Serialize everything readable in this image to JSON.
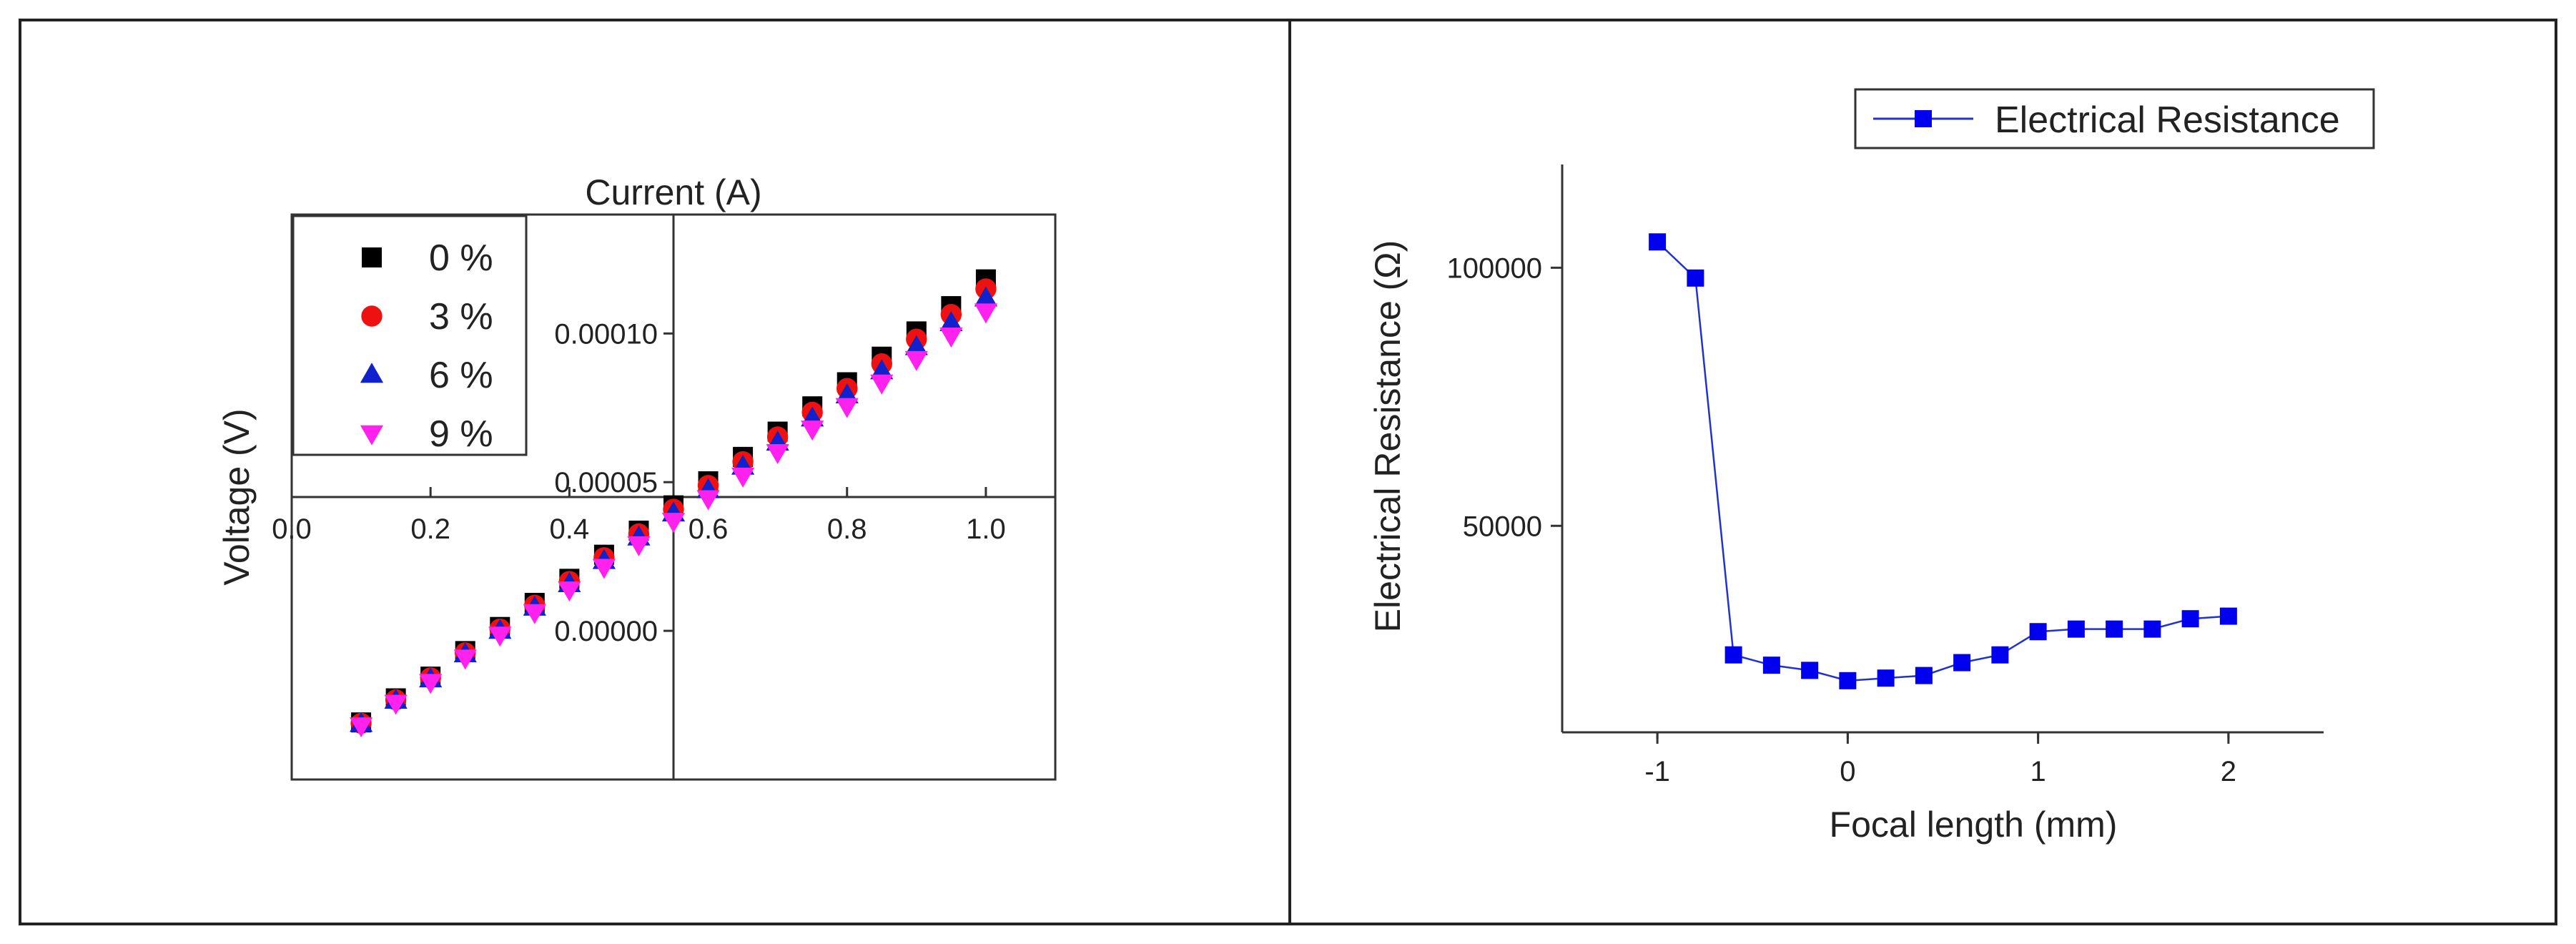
{
  "colors": {
    "frame": "#222222",
    "axis": "#333333",
    "s0": "#000000",
    "s3": "#ee1111",
    "s6": "#1122cc",
    "s9": "#ff22ee",
    "resistance": "#0000ee",
    "resistance_line": "#2233cc"
  },
  "chart_data": [
    {
      "type": "scatter",
      "title": "",
      "xlabel": "Current (A)",
      "ylabel": "Voltage (V)",
      "xlim": [
        0.0,
        1.1
      ],
      "ylim": [
        -5e-05,
        0.00014
      ],
      "x_ticks": [
        "0.0",
        "0.2",
        "0.4",
        "0.6",
        "0.8",
        "1.0"
      ],
      "y_ticks": [
        "0.00000",
        "0.00005",
        "0.00010"
      ],
      "legend": {
        "position": "top-left",
        "entries": [
          "0 %",
          "3 %",
          "6 %",
          "9 %"
        ]
      },
      "x": [
        0.1,
        0.15,
        0.2,
        0.25,
        0.3,
        0.35,
        0.4,
        0.45,
        0.5,
        0.55,
        0.6,
        0.65,
        0.7,
        0.75,
        0.8,
        0.85,
        0.9,
        0.95,
        1.0
      ],
      "series": [
        {
          "name": "0 %",
          "marker": "square",
          "values": [
            -3.08e-05,
            -2.27e-05,
            -1.54e-05,
            -6.8e-06,
            1.3e-06,
            9.4e-06,
            1.75e-05,
            2.56e-05,
            3.37e-05,
            4.22e-05,
            5.03e-05,
            5.85e-05,
            6.7e-05,
            7.55e-05,
            8.36e-05,
            9.22e-05,
            0.0001007,
            0.0001092,
            0.0001182
          ]
        },
        {
          "name": "3 %",
          "marker": "circle",
          "values": [
            -3.11e-05,
            -2.32e-05,
            -1.58e-05,
            -7.4e-06,
            6e-07,
            8.6e-06,
            1.66e-05,
            2.46e-05,
            3.26e-05,
            4.09e-05,
            4.89e-05,
            5.69e-05,
            6.52e-05,
            7.35e-05,
            8.15e-05,
            8.98e-05,
            9.81e-05,
            0.0001064,
            0.000115
          ]
        },
        {
          "name": "6 %",
          "marker": "triangle-up",
          "values": [
            -3.13e-05,
            -2.35e-05,
            -1.63e-05,
            -7.9e-06,
            0.0,
            7.8e-06,
            1.57e-05,
            2.35e-05,
            3.14e-05,
            3.95e-05,
            4.73e-05,
            5.52e-05,
            6.33e-05,
            7.14e-05,
            7.92e-05,
            8.73e-05,
            9.54e-05,
            0.0001035,
            0.0001118
          ]
        },
        {
          "name": "9 %",
          "marker": "triangle-down",
          "values": [
            -3.18e-05,
            -2.42e-05,
            -1.72e-05,
            -9e-06,
            -1.3e-06,
            6.3e-06,
            1.39e-05,
            2.15e-05,
            2.91e-05,
            3.7e-05,
            4.46e-05,
            5.22e-05,
            6.01e-05,
            6.8e-05,
            7.56e-05,
            8.35e-05,
            9.14e-05,
            9.93e-05,
            0.0001074
          ]
        }
      ]
    },
    {
      "type": "line",
      "title": "",
      "xlabel": "Focal length (mm)",
      "ylabel": "Electrical Resistance (Ω)",
      "xlim": [
        -1.5,
        2.5
      ],
      "ylim": [
        10000,
        120000
      ],
      "x_ticks": [
        "-1",
        "0",
        "1",
        "2"
      ],
      "y_ticks": [
        "50000",
        "100000"
      ],
      "legend": {
        "position": "top-right",
        "entries": [
          "Electrical Resistance"
        ]
      },
      "x": [
        -1.0,
        -0.8,
        -0.6,
        -0.4,
        -0.2,
        0.0,
        0.2,
        0.4,
        0.6,
        0.8,
        1.0,
        1.2,
        1.4,
        1.6,
        1.8,
        2.0
      ],
      "series": [
        {
          "name": "Electrical Resistance",
          "marker": "square",
          "values": [
            105000,
            98000,
            25000,
            23000,
            22000,
            20000,
            20500,
            21000,
            23500,
            25000,
            29500,
            30000,
            30000,
            30000,
            32000,
            32500
          ]
        }
      ]
    }
  ]
}
